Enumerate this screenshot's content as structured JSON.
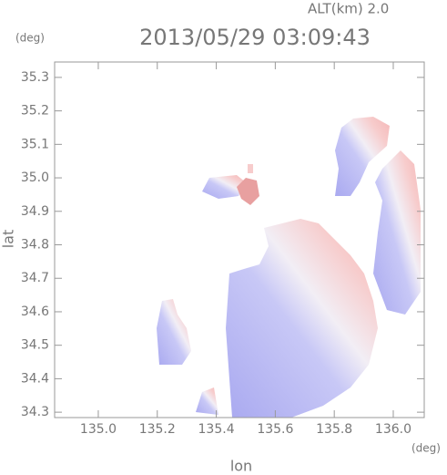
{
  "chart_data": {
    "type": "map",
    "title": "2013/05/29 03:09:43",
    "annotation": "ALT(km) 2.0",
    "xlabel": "lon",
    "ylabel": "lat",
    "x_unit": "(deg)",
    "y_unit": "(deg)",
    "xlim": [
      134.852,
      136.105
    ],
    "ylim": [
      34.284,
      35.346
    ],
    "xticks": [
      {
        "value": 135.0,
        "label": "135.0"
      },
      {
        "value": 135.2,
        "label": "135.2"
      },
      {
        "value": 135.4,
        "label": "135.4"
      },
      {
        "value": 135.6,
        "label": "135.6"
      },
      {
        "value": 135.8,
        "label": "135.8"
      },
      {
        "value": 136.0,
        "label": "136.0"
      }
    ],
    "yticks": [
      {
        "value": 34.3,
        "label": "34.3"
      },
      34.4,
      34.5,
      34.6,
      34.7,
      34.8,
      34.9,
      {
        "value": 35.0,
        "label": "35.0"
      },
      35.1,
      35.2,
      35.3
    ]
  }
}
